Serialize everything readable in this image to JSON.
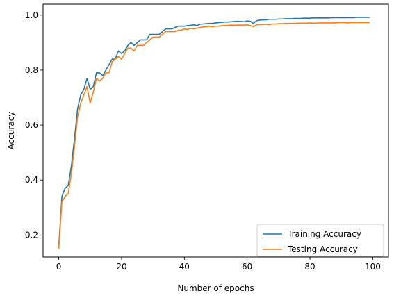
{
  "chart_data": {
    "type": "line",
    "title": "",
    "xlabel": "Number of epochs",
    "ylabel": "Accuracy",
    "xlim": [
      -5,
      105
    ],
    "ylim": [
      0.12,
      1.04
    ],
    "x_ticks": [
      0,
      20,
      40,
      60,
      80,
      100
    ],
    "y_ticks": [
      0.2,
      0.4,
      0.6,
      0.8,
      1.0
    ],
    "x_tick_labels": [
      "0",
      "20",
      "40",
      "60",
      "80",
      "100"
    ],
    "y_tick_labels": [
      "0.2",
      "0.4",
      "0.6",
      "0.8",
      "1.0"
    ],
    "grid": false,
    "legend_position": "lower-right",
    "series": [
      {
        "name": "Training Accuracy",
        "color": "#1f77b4",
        "values": [
          0.16,
          0.34,
          0.37,
          0.38,
          0.45,
          0.55,
          0.66,
          0.71,
          0.73,
          0.77,
          0.73,
          0.74,
          0.79,
          0.79,
          0.78,
          0.8,
          0.82,
          0.84,
          0.84,
          0.87,
          0.86,
          0.87,
          0.89,
          0.9,
          0.89,
          0.9,
          0.91,
          0.91,
          0.91,
          0.93,
          0.93,
          0.93,
          0.93,
          0.94,
          0.95,
          0.95,
          0.95,
          0.955,
          0.96,
          0.96,
          0.96,
          0.962,
          0.963,
          0.965,
          0.962,
          0.967,
          0.968,
          0.969,
          0.97,
          0.97,
          0.972,
          0.973,
          0.974,
          0.975,
          0.975,
          0.976,
          0.977,
          0.978,
          0.977,
          0.976,
          0.979,
          0.978,
          0.97,
          0.98,
          0.982,
          0.983,
          0.983,
          0.985,
          0.985,
          0.985,
          0.986,
          0.986,
          0.987,
          0.987,
          0.987,
          0.988,
          0.988,
          0.988,
          0.989,
          0.989,
          0.989,
          0.99,
          0.99,
          0.99,
          0.99,
          0.99,
          0.99,
          0.991,
          0.991,
          0.991,
          0.991,
          0.991,
          0.991,
          0.991,
          0.991,
          0.992,
          0.992,
          0.992,
          0.992,
          0.992
        ]
      },
      {
        "name": "Testing Accuracy",
        "color": "#ff7f0e",
        "values": [
          0.15,
          0.32,
          0.34,
          0.35,
          0.42,
          0.52,
          0.63,
          0.68,
          0.71,
          0.74,
          0.68,
          0.72,
          0.77,
          0.76,
          0.77,
          0.79,
          0.79,
          0.83,
          0.84,
          0.85,
          0.84,
          0.86,
          0.88,
          0.88,
          0.87,
          0.89,
          0.89,
          0.89,
          0.9,
          0.91,
          0.92,
          0.92,
          0.92,
          0.93,
          0.94,
          0.94,
          0.94,
          0.94,
          0.945,
          0.945,
          0.95,
          0.948,
          0.952,
          0.95,
          0.953,
          0.955,
          0.957,
          0.958,
          0.96,
          0.958,
          0.96,
          0.96,
          0.962,
          0.962,
          0.963,
          0.964,
          0.963,
          0.964,
          0.964,
          0.964,
          0.965,
          0.962,
          0.958,
          0.965,
          0.966,
          0.966,
          0.967,
          0.965,
          0.968,
          0.968,
          0.969,
          0.969,
          0.97,
          0.97,
          0.97,
          0.97,
          0.971,
          0.971,
          0.971,
          0.971,
          0.972,
          0.971,
          0.971,
          0.972,
          0.972,
          0.972,
          0.972,
          0.972,
          0.972,
          0.973,
          0.973,
          0.973,
          0.972,
          0.973,
          0.973,
          0.973,
          0.973,
          0.973,
          0.973,
          0.973
        ]
      }
    ]
  }
}
